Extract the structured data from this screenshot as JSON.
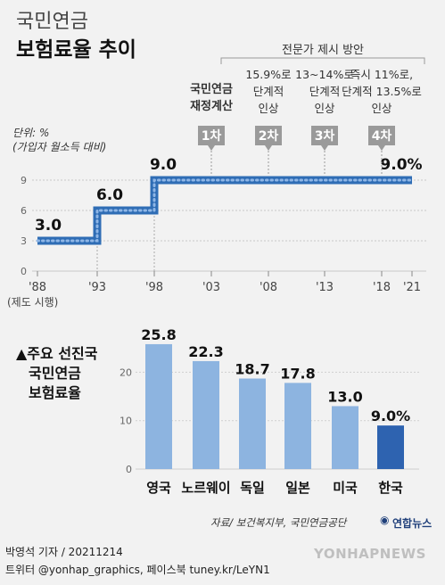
{
  "header": {
    "title_line1": "국민연금",
    "title_line2": "보험료율 추이"
  },
  "unit": {
    "line1": "단위: %",
    "line2": "(가입자 월소득 대비)"
  },
  "chart_data": [
    {
      "type": "line",
      "title": "",
      "x": [
        "'88",
        "'93",
        "'98",
        "'03",
        "'08",
        "'13",
        "'18",
        "'21"
      ],
      "x_note": "(제도 시행)",
      "series": [
        {
          "values": [
            {
              "x": 1988,
              "y": 3.0
            },
            {
              "x": 1993,
              "y": 6.0
            },
            {
              "x": 1998,
              "y": 9.0
            },
            {
              "x": 2021,
              "y": 9.0
            }
          ]
        }
      ],
      "step": true,
      "yticks": [
        "0",
        "3",
        "6",
        "9"
      ],
      "ylim": [
        0,
        10.5
      ],
      "data_labels": [
        "3.0",
        "6.0",
        "9.0",
        "9.0%"
      ],
      "grid": true,
      "annotations": {
        "group_label": "전문가 제시 방안",
        "items": [
          {
            "x": 2003,
            "badge": "1차",
            "text": [
              "국민연금",
              "재정계산"
            ]
          },
          {
            "x": 2008,
            "badge": "2차",
            "text": [
              "15.9%로",
              "단계적",
              "인상"
            ]
          },
          {
            "x": 2013,
            "badge": "3차",
            "text": [
              "13~14%로",
              "단계적",
              "인상"
            ]
          },
          {
            "x": 2018,
            "badge": "4차",
            "text": [
              "즉시 11%로,",
              "단계적 13.5%로",
              "인상"
            ]
          }
        ]
      },
      "colors": {
        "line": "#2f6db5",
        "badge": "#9a9a9a"
      }
    },
    {
      "type": "bar",
      "title": "▲주요 선진국 국민연금 보험료율",
      "title_lines": [
        "▲주요 선진국",
        "국민연금",
        "보험료율"
      ],
      "categories": [
        "영국",
        "노르웨이",
        "독일",
        "일본",
        "미국",
        "한국"
      ],
      "values": [
        25.8,
        22.3,
        18.7,
        17.8,
        13.0,
        9.0
      ],
      "data_labels": [
        "25.8",
        "22.3",
        "18.7",
        "17.8",
        "13.0",
        "9.0%"
      ],
      "yticks": [
        "0",
        "10",
        "20"
      ],
      "ylim": [
        0,
        28
      ],
      "grid": true,
      "colors": {
        "bar": "#8db4e0",
        "highlight": "#2e63b0"
      },
      "highlight_index": 5
    }
  ],
  "footer": {
    "source": "자료/ 보건복지부, 국민연금공단",
    "logo": "연합뉴스",
    "byline": "박영석 기자 /  20211214",
    "social": "트위터 @yonhap_graphics, 페이스북 tuney.kr/LeYN1",
    "watermark": "YONHAPNEWS"
  }
}
